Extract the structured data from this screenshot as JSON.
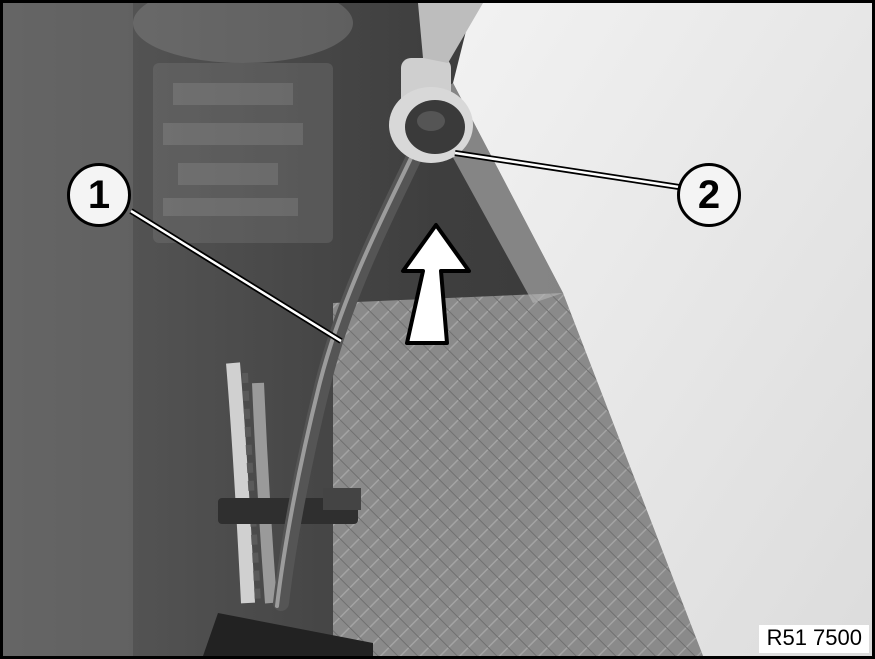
{
  "figure": {
    "callouts": [
      {
        "number": "1",
        "part": "cable"
      },
      {
        "number": "2",
        "part": "grommet"
      }
    ],
    "figure_code": "R51 7500",
    "arrow": "push-direction-up",
    "colors": {
      "ink": "#000000",
      "background": "#ffffff",
      "photo_tone": "grayscale"
    }
  }
}
